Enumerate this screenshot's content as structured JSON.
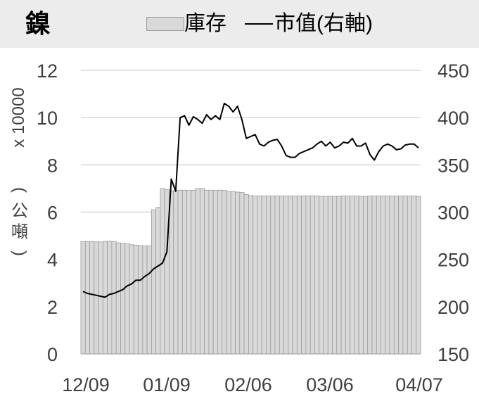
{
  "title": "鎳",
  "legend": {
    "bar_label": "庫存",
    "line_label": "市值(右軸)"
  },
  "colors": {
    "bar_fill": "#d9d9d9",
    "bar_stroke": "#9a9a9a",
    "line": "#000000",
    "grid": "#d9d9d9",
    "header_bg": "#ececec"
  },
  "chart_data": {
    "type": "bar+line",
    "title": "鎳",
    "x_ticks": [
      "12/09",
      "01/09",
      "02/06",
      "03/06",
      "04/07"
    ],
    "y_left": {
      "label": "x 10000（公噸）",
      "ticks": [
        0,
        2,
        4,
        6,
        8,
        10,
        12
      ],
      "range": [
        0,
        12
      ]
    },
    "y_right": {
      "label": "",
      "ticks": [
        150,
        200,
        250,
        300,
        350,
        400,
        450
      ],
      "range": [
        150,
        450
      ]
    },
    "grid": true,
    "series": [
      {
        "name": "庫存",
        "axis": "left",
        "type": "bar",
        "values": [
          4.75,
          4.75,
          4.75,
          4.74,
          4.74,
          4.76,
          4.77,
          4.76,
          4.7,
          4.68,
          4.66,
          4.62,
          4.6,
          4.58,
          4.57,
          4.58,
          6.1,
          6.2,
          7.0,
          6.95,
          6.9,
          6.92,
          6.93,
          6.93,
          6.92,
          6.92,
          7.0,
          7.0,
          6.93,
          6.92,
          6.92,
          6.93,
          6.92,
          6.88,
          6.87,
          6.85,
          6.83,
          6.75,
          6.7,
          6.68,
          6.68,
          6.68,
          6.68,
          6.68,
          6.68,
          6.68,
          6.68,
          6.68,
          6.68,
          6.68,
          6.68,
          6.69,
          6.69,
          6.68,
          6.67,
          6.67,
          6.67,
          6.67,
          6.67,
          6.68,
          6.68,
          6.68,
          6.68,
          6.67,
          6.67,
          6.68,
          6.68,
          6.68,
          6.68,
          6.68,
          6.68,
          6.68,
          6.68,
          6.68,
          6.68,
          6.68,
          6.67
        ]
      },
      {
        "name": "市值(右軸)",
        "axis": "right",
        "type": "line",
        "values": [
          216,
          214,
          213,
          212,
          211,
          210,
          213,
          214,
          216,
          218,
          222,
          224,
          228,
          228,
          232,
          235,
          240,
          243,
          246,
          258,
          335,
          322,
          400,
          402,
          392,
          401,
          398,
          394,
          403,
          398,
          402,
          398,
          415,
          412,
          406,
          412,
          398,
          378,
          380,
          382,
          372,
          370,
          374,
          376,
          377,
          370,
          360,
          358,
          358,
          362,
          364,
          366,
          368,
          372,
          375,
          370,
          374,
          368,
          370,
          374,
          373,
          378,
          370,
          370,
          373,
          361,
          355,
          364,
          370,
          372,
          370,
          366,
          367,
          371,
          372,
          372,
          368
        ]
      }
    ]
  }
}
